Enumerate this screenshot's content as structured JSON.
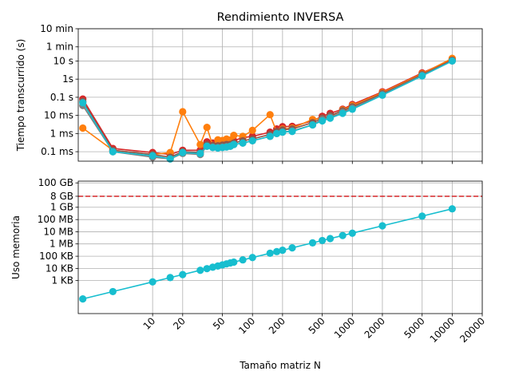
{
  "chart_data": {
    "type": "line",
    "title": "Rendimiento INVERSA",
    "xlabel": "Tamaño matriz N",
    "x_scale": "log",
    "xlim": [
      1.8,
      20000
    ],
    "x_ticks": [
      10,
      20,
      50,
      100,
      200,
      500,
      1000,
      2000,
      5000,
      10000,
      20000
    ],
    "x_tick_labels": [
      "10",
      "20",
      "50",
      "100",
      "200",
      "500",
      "1000",
      "2000",
      "5000",
      "10000",
      "20000"
    ],
    "grid": true,
    "x": [
      2,
      4,
      10,
      15,
      20,
      30,
      35,
      40,
      45,
      50,
      55,
      60,
      65,
      80,
      100,
      150,
      175,
      200,
      250,
      400,
      500,
      600,
      800,
      1000,
      2000,
      5000,
      10000
    ],
    "time_panel": {
      "ylabel": "Tiempo transcurrido (s)",
      "y_scale": "log",
      "ylim": [
        3e-05,
        600
      ],
      "y_ticks": [
        0.0001,
        0.001,
        0.01,
        0.1,
        1,
        10,
        60,
        600
      ],
      "y_tick_labels": [
        "0.1 ms",
        "1 ms",
        "10 ms",
        "0.1 s",
        "1s",
        "10 s",
        "1 min",
        "10 min"
      ],
      "series": [
        {
          "color": "#d62728",
          "values": [
            0.08,
            0.00015,
            9e-05,
            7e-05,
            0.00012,
            0.00012,
            0.00035,
            0.0003,
            0.00032,
            0.00034,
            0.00036,
            0.0004,
            0.0004,
            0.0006,
            0.0007,
            0.0012,
            0.0018,
            0.0024,
            0.0025,
            0.005,
            0.009,
            0.013,
            0.022,
            0.04,
            0.2,
            2.2,
            12
          ]
        },
        {
          "color": "#ff7f0e",
          "values": [
            0.002,
            0.00012,
            7e-05,
            9e-05,
            0.016,
            0.00025,
            0.0022,
            0.00022,
            0.00045,
            0.00042,
            0.0005,
            0.00044,
            0.0008,
            0.0007,
            0.0015,
            0.011,
            0.0012,
            0.0018,
            0.002,
            0.006,
            0.007,
            0.009,
            0.02,
            0.035,
            0.18,
            2.0,
            14
          ]
        },
        {
          "color": "#8c564b",
          "values": [
            0.06,
            0.00012,
            7e-05,
            5e-05,
            0.0001,
            9e-05,
            0.00025,
            0.00022,
            0.00021,
            0.00023,
            0.00025,
            0.00025,
            0.0003,
            0.0004,
            0.0005,
            0.0009,
            0.0013,
            0.0016,
            0.0018,
            0.004,
            0.007,
            0.01,
            0.018,
            0.03,
            0.16,
            1.8,
            11
          ]
        },
        {
          "color": "#7f7f7f",
          "values": [
            0.035,
            0.0001,
            5e-05,
            4e-05,
            8e-05,
            7e-05,
            0.0002,
            0.00018,
            0.00017,
            0.00018,
            0.00019,
            0.0002,
            0.00025,
            0.0003,
            0.0004,
            0.0007,
            0.001,
            0.0012,
            0.0014,
            0.003,
            0.006,
            0.008,
            0.015,
            0.025,
            0.14,
            1.6,
            10
          ]
        },
        {
          "color": "#17becf",
          "values": [
            0.05,
            0.0001,
            6e-05,
            4e-05,
            9e-05,
            8e-05,
            0.0002,
            0.00017,
            0.00016,
            0.00017,
            0.00018,
            0.0002,
            0.00025,
            0.0003,
            0.0004,
            0.0007,
            0.001,
            0.0012,
            0.0013,
            0.003,
            0.005,
            0.007,
            0.013,
            0.022,
            0.13,
            1.5,
            10
          ]
        }
      ]
    },
    "memory_panel": {
      "ylabel": "Uso memoria",
      "y_scale": "log",
      "ylim": [
        2,
        150000000000
      ],
      "y_ticks": [
        1024,
        10240,
        102400,
        1048576,
        10485760,
        104857600,
        1073741824,
        8589934592,
        107374182400
      ],
      "y_tick_labels": [
        "1 KB",
        "10 KB",
        "100 KB",
        "1 MB",
        "10 MB",
        "100 MB",
        "1 GB",
        "8 GB",
        "100 GB"
      ],
      "reference_line": {
        "value": 8589934592,
        "color": "#d62728",
        "style": "dashed"
      },
      "series": [
        {
          "color": "#17becf",
          "values": [
            32,
            128,
            800,
            1800,
            3200,
            7200,
            9800,
            12800,
            16200,
            20000,
            24200,
            28800,
            33800,
            51200,
            80000,
            180000,
            245000,
            320000,
            500000,
            1280000,
            2000000,
            2880000,
            5120000,
            8000000,
            32000000,
            200000000,
            800000000
          ]
        }
      ]
    }
  }
}
